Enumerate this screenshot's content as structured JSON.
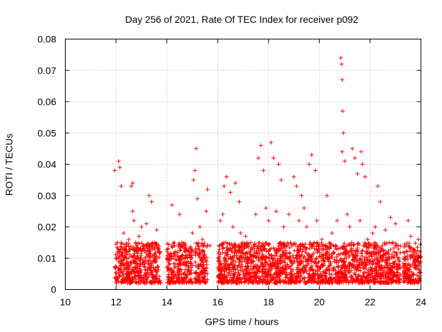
{
  "chart_data": {
    "type": "scatter",
    "title": "Day 256 of 2021, Rate Of TEC Index for receiver p092",
    "xlabel": "GPS time / hours",
    "ylabel": "ROTI / TECUs",
    "xlim": [
      10,
      24
    ],
    "ylim": [
      0,
      0.08
    ],
    "x_ticks": [
      10,
      12,
      14,
      16,
      18,
      20,
      22,
      24
    ],
    "x_tick_labels": [
      "10",
      "12",
      "14",
      "16",
      "18",
      "20",
      "22",
      "24"
    ],
    "y_ticks": [
      0,
      0.01,
      0.02,
      0.03,
      0.04,
      0.05,
      0.06,
      0.07,
      0.08
    ],
    "y_tick_labels": [
      "0",
      "0.01",
      "0.02",
      "0.03",
      "0.04",
      "0.05",
      "0.06",
      "0.07",
      "0.08"
    ],
    "grid": true,
    "marker": "+",
    "series": [
      {
        "name": "ROTI",
        "color": "#ff0000",
        "points": [
          [
            11.95,
            0.038
          ],
          [
            12.1,
            0.041
          ],
          [
            12.15,
            0.039
          ],
          [
            12.2,
            0.033
          ],
          [
            12.6,
            0.033
          ],
          [
            12.65,
            0.034
          ],
          [
            12.65,
            0.025
          ],
          [
            13.3,
            0.03
          ],
          [
            13.4,
            0.028
          ],
          [
            14.2,
            0.027
          ],
          [
            14.5,
            0.024
          ],
          [
            15.05,
            0.035
          ],
          [
            15.1,
            0.038
          ],
          [
            15.15,
            0.045
          ],
          [
            15.2,
            0.029
          ],
          [
            15.55,
            0.025
          ],
          [
            15.6,
            0.032
          ],
          [
            16.25,
            0.033
          ],
          [
            16.35,
            0.036
          ],
          [
            16.5,
            0.031
          ],
          [
            16.7,
            0.034
          ],
          [
            16.85,
            0.028
          ],
          [
            17.6,
            0.042
          ],
          [
            17.7,
            0.046
          ],
          [
            17.8,
            0.038
          ],
          [
            18.1,
            0.047
          ],
          [
            18.2,
            0.042
          ],
          [
            18.4,
            0.04
          ],
          [
            18.5,
            0.035
          ],
          [
            19.0,
            0.036
          ],
          [
            19.1,
            0.033
          ],
          [
            19.3,
            0.03
          ],
          [
            19.6,
            0.04
          ],
          [
            19.7,
            0.043
          ],
          [
            19.85,
            0.038
          ],
          [
            20.3,
            0.03
          ],
          [
            20.85,
            0.074
          ],
          [
            20.88,
            0.072
          ],
          [
            20.9,
            0.067
          ],
          [
            20.92,
            0.057
          ],
          [
            20.95,
            0.05
          ],
          [
            20.9,
            0.044
          ],
          [
            21.0,
            0.041
          ],
          [
            21.3,
            0.045
          ],
          [
            21.4,
            0.042
          ],
          [
            21.5,
            0.037
          ],
          [
            21.65,
            0.044
          ],
          [
            21.7,
            0.04
          ],
          [
            21.8,
            0.036
          ],
          [
            22.3,
            0.033
          ],
          [
            22.4,
            0.028
          ],
          [
            22.8,
            0.023
          ],
          [
            23.0,
            0.021
          ],
          [
            23.5,
            0.022
          ],
          [
            23.6,
            0.017
          ],
          [
            23.9,
            0.016
          ],
          [
            12.05,
            0.015
          ],
          [
            12.3,
            0.018
          ],
          [
            12.4,
            0.012
          ],
          [
            12.5,
            0.016
          ],
          [
            12.7,
            0.022
          ],
          [
            12.8,
            0.014
          ],
          [
            12.9,
            0.017
          ],
          [
            13.0,
            0.02
          ],
          [
            13.1,
            0.013
          ],
          [
            13.2,
            0.021
          ],
          [
            13.5,
            0.015
          ],
          [
            13.6,
            0.019
          ],
          [
            13.7,
            0.012
          ],
          [
            14.0,
            0.01
          ],
          [
            14.3,
            0.014
          ],
          [
            14.6,
            0.015
          ],
          [
            14.8,
            0.011
          ],
          [
            15.0,
            0.018
          ],
          [
            15.3,
            0.02
          ],
          [
            15.4,
            0.016
          ],
          [
            15.7,
            0.014
          ],
          [
            16.1,
            0.022
          ],
          [
            16.2,
            0.024
          ],
          [
            16.6,
            0.02
          ],
          [
            16.9,
            0.018
          ],
          [
            17.1,
            0.017
          ],
          [
            17.3,
            0.015
          ],
          [
            17.5,
            0.024
          ],
          [
            17.9,
            0.026
          ],
          [
            18.0,
            0.022
          ],
          [
            18.3,
            0.025
          ],
          [
            18.6,
            0.02
          ],
          [
            18.8,
            0.024
          ],
          [
            19.2,
            0.022
          ],
          [
            19.4,
            0.026
          ],
          [
            19.5,
            0.02
          ],
          [
            19.9,
            0.022
          ],
          [
            20.1,
            0.016
          ],
          [
            20.5,
            0.018
          ],
          [
            20.7,
            0.022
          ],
          [
            21.1,
            0.024
          ],
          [
            21.2,
            0.02
          ],
          [
            21.6,
            0.022
          ],
          [
            21.9,
            0.016
          ],
          [
            22.1,
            0.018
          ],
          [
            22.2,
            0.02
          ],
          [
            22.6,
            0.019
          ],
          [
            22.9,
            0.015
          ],
          [
            23.1,
            0.014
          ],
          [
            23.7,
            0.012
          ]
        ],
        "dense_band": {
          "description": "continuous cloud of points between ROTI 0.002 and ~0.015",
          "x_segments": [
            [
              11.95,
              13.75
            ],
            [
              14.0,
              15.0
            ],
            [
              15.1,
              15.6
            ],
            [
              16.0,
              23.2
            ],
            [
              23.3,
              24.0
            ]
          ],
          "y_range": [
            0.002,
            0.015
          ]
        }
      }
    ]
  }
}
